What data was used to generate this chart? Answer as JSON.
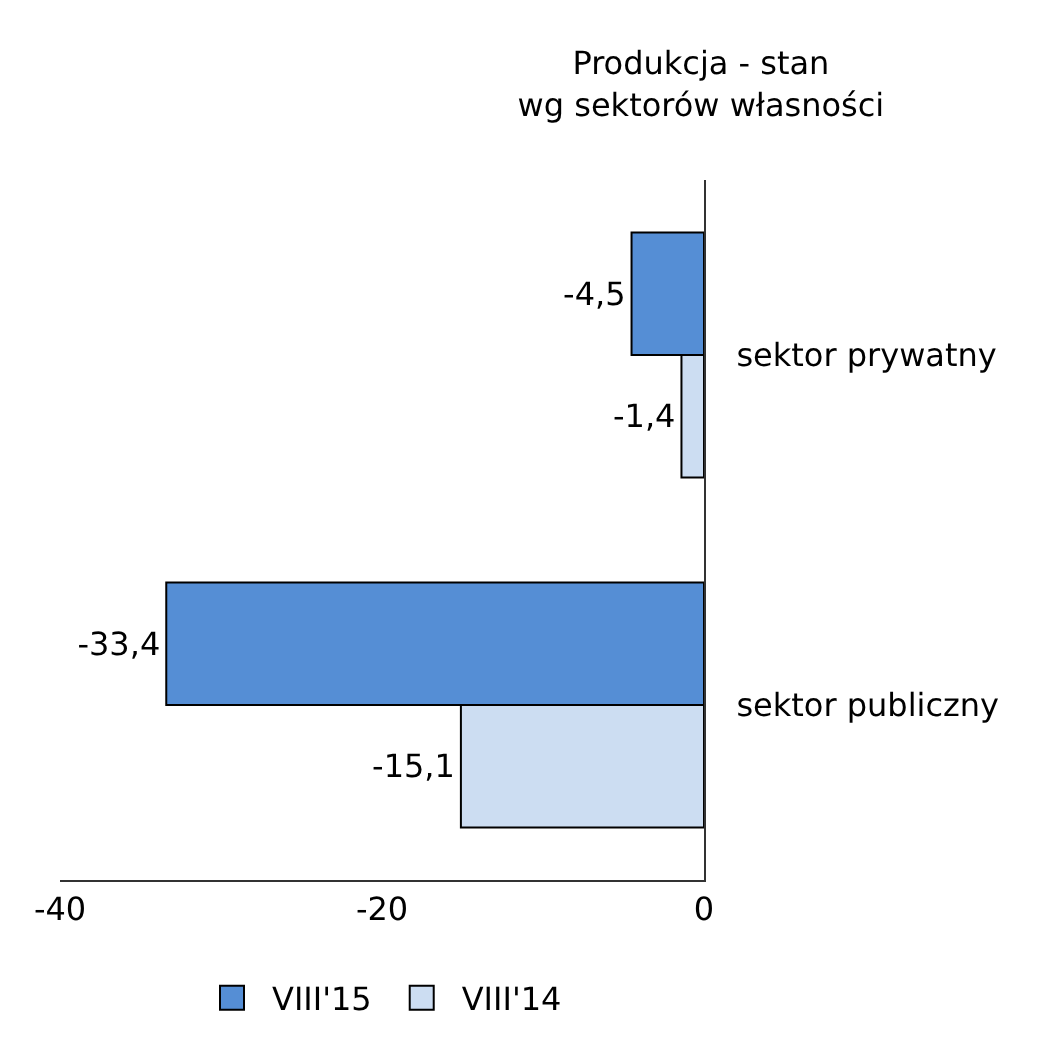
{
  "chart_data": {
    "type": "bar",
    "orientation": "horizontal",
    "title": "Produkcja - stan\nwg sektorów własności",
    "categories": [
      "sektor prywatny",
      "sektor publiczny"
    ],
    "series": [
      {
        "name": "VIII'15",
        "color": "#558ed5",
        "values": [
          -4.5,
          -33.4
        ],
        "value_labels": [
          "-4,5",
          "-33,4"
        ]
      },
      {
        "name": "VIII'14",
        "color": "#558ed5",
        "values": [
          -1.4,
          -15.1
        ],
        "value_labels": [
          "-1,4",
          "-15,1"
        ]
      }
    ],
    "xlim": [
      -40,
      0
    ],
    "xticks": [
      -40,
      -20,
      0
    ],
    "grid": false,
    "legend": "bottom"
  }
}
